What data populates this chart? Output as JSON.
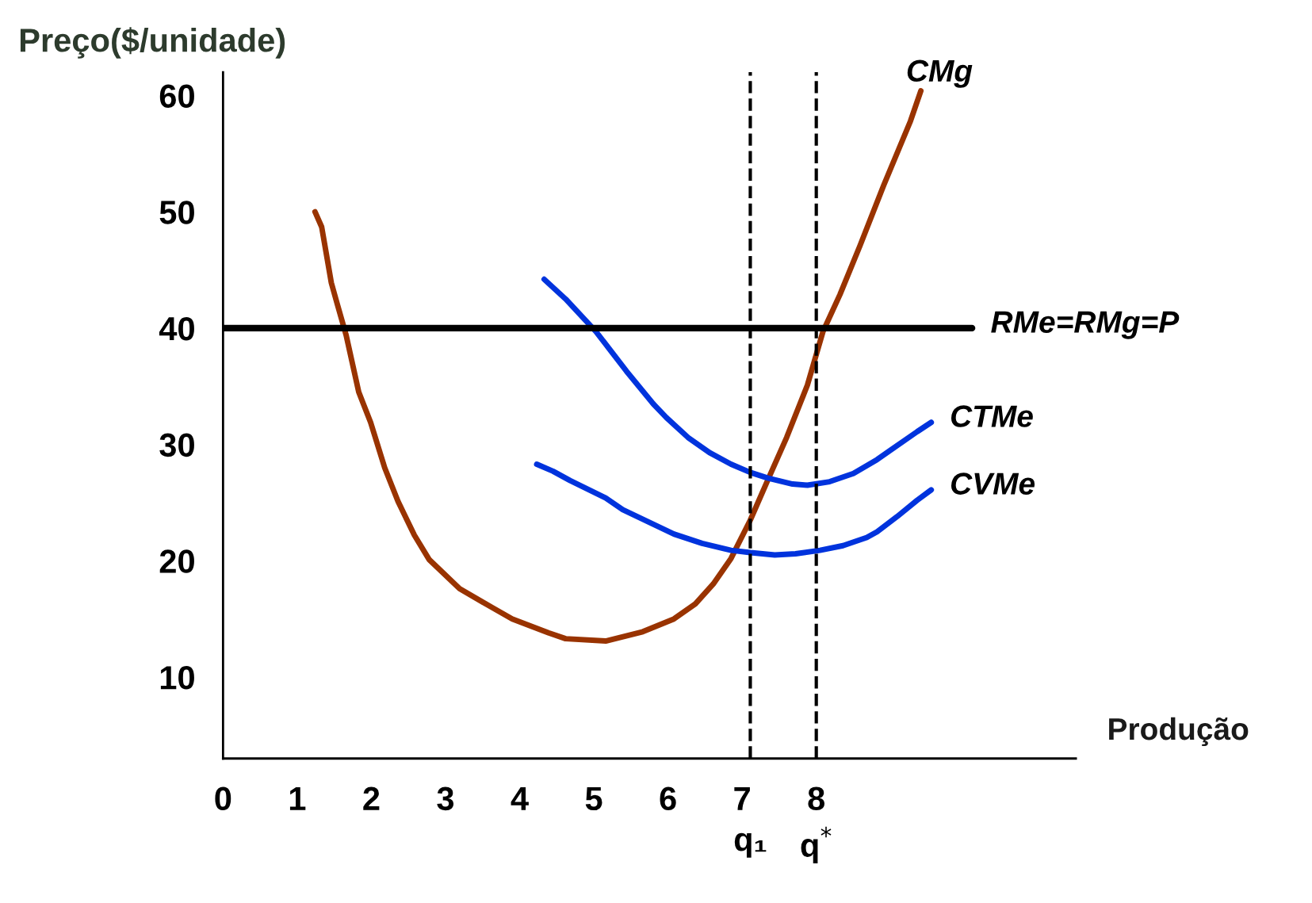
{
  "chart_data": {
    "type": "line",
    "xlabel": "Produção",
    "ylabel": "Preço($/unidade)",
    "xlim": [
      0,
      11.5
    ],
    "ylim": [
      3,
      62
    ],
    "xticks": [
      0,
      1,
      2,
      3,
      4,
      5,
      6,
      7,
      8
    ],
    "yticks": [
      10,
      20,
      30,
      40,
      50,
      60
    ],
    "grid": false,
    "legend": false,
    "marker": "none",
    "line_style": "solid",
    "series": [
      {
        "name": "CMg",
        "color": "#993300",
        "x": [
          1.24,
          1.33,
          1.39,
          1.46,
          1.53,
          1.66,
          1.83,
          1.99,
          2.18,
          2.36,
          2.58,
          2.78,
          3.19,
          3.54,
          3.9,
          4.39,
          4.62,
          5.16,
          5.66,
          6.08,
          6.37,
          6.61,
          6.85,
          7.11,
          7.35,
          7.6,
          7.88,
          8.09,
          8.32,
          8.59,
          8.91,
          9.27,
          9.41
        ],
        "values": [
          50.0,
          48.7,
          46.5,
          43.9,
          42.3,
          39.4,
          34.5,
          31.9,
          28.0,
          25.1,
          22.2,
          20.1,
          17.6,
          16.3,
          15.0,
          13.8,
          13.3,
          13.1,
          13.9,
          15.0,
          16.3,
          18.0,
          20.2,
          23.5,
          27.0,
          30.6,
          35.1,
          39.7,
          42.9,
          47.1,
          52.3,
          57.8,
          60.4
        ]
      },
      {
        "name": "CTMe",
        "color": "#0033dd",
        "x": [
          4.33,
          4.62,
          5.03,
          5.44,
          5.8,
          5.98,
          6.27,
          6.56,
          6.85,
          7.11,
          7.35,
          7.68,
          7.88,
          8.18,
          8.5,
          8.82,
          9.0,
          9.36,
          9.55
        ],
        "values": [
          44.2,
          42.5,
          39.7,
          36.3,
          33.5,
          32.3,
          30.6,
          29.3,
          28.3,
          27.6,
          27.1,
          26.6,
          26.5,
          26.8,
          27.5,
          28.7,
          29.5,
          31.1,
          31.9
        ]
      },
      {
        "name": "CVMe",
        "color": "#0033dd",
        "x": [
          4.23,
          4.45,
          4.68,
          5.16,
          5.39,
          5.85,
          6.08,
          6.46,
          6.85,
          7.11,
          7.44,
          7.72,
          8.05,
          8.36,
          8.68,
          8.82,
          9.09,
          9.36,
          9.55
        ],
        "values": [
          28.3,
          27.7,
          26.9,
          25.4,
          24.4,
          23.0,
          22.3,
          21.5,
          20.9,
          20.7,
          20.5,
          20.6,
          20.9,
          21.3,
          22.0,
          22.5,
          23.8,
          25.2,
          26.1
        ]
      },
      {
        "name": "RMe=RMg=P",
        "color": "#000000",
        "x": [
          0,
          10.1
        ],
        "values": [
          40,
          40
        ]
      }
    ],
    "ref_lines": [
      {
        "axis": "x",
        "value": 7.11,
        "label": "q₁",
        "line_style": "dashed",
        "color": "#000000"
      },
      {
        "axis": "x",
        "value": 8.0,
        "label": "q$^{*}$",
        "line_style": "dashed",
        "color": "#000000"
      }
    ]
  }
}
